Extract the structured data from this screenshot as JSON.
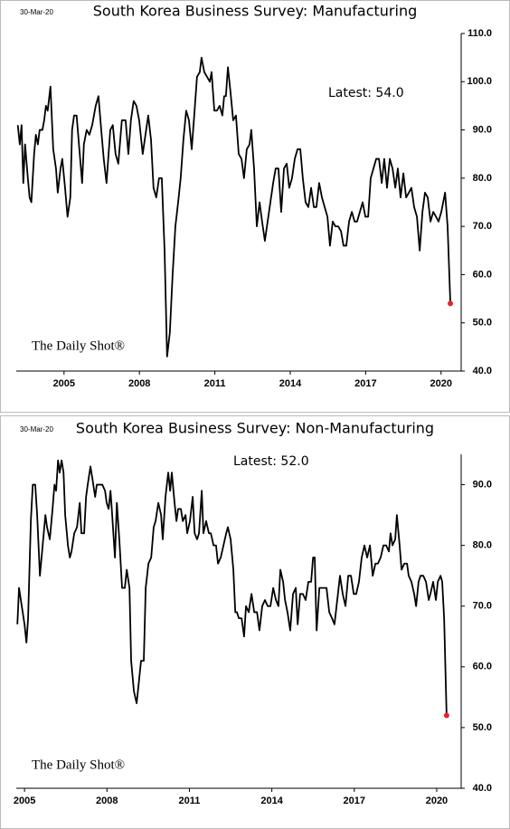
{
  "chart_data": [
    {
      "type": "line",
      "title": "South Korea Business Survey: Manufacturing",
      "date_label": "30-Mar-20",
      "annotation": "Latest:  54.0",
      "watermark": "The Daily Shot®",
      "color": "#000000",
      "last_point_color": "#e8222b",
      "xlim": [
        2003.1,
        2020.8
      ],
      "xticks": [
        2005,
        2008,
        2011,
        2014,
        2017,
        2020
      ],
      "ylim": [
        40,
        110
      ],
      "yticks": [
        {
          "value": 40,
          "label": "40.0"
        },
        {
          "value": 50,
          "label": "50.0"
        },
        {
          "value": 60,
          "label": "60.0"
        },
        {
          "value": 70,
          "label": "70.0"
        },
        {
          "value": 80,
          "label": "80.0"
        },
        {
          "value": 90,
          "label": "90.0"
        },
        {
          "value": 100,
          "label": "100.0"
        },
        {
          "value": 110,
          "label": "110.0"
        }
      ],
      "x": [
        2003.16,
        2003.24,
        2003.31,
        2003.38,
        2003.45,
        2003.56,
        2003.63,
        2003.7,
        2003.81,
        2003.88,
        2003.96,
        2004.03,
        2004.14,
        2004.21,
        2004.28,
        2004.35,
        2004.46,
        2004.57,
        2004.68,
        2004.75,
        2004.86,
        2004.93,
        2005.04,
        2005.14,
        2005.25,
        2005.32,
        2005.4,
        2005.5,
        2005.61,
        2005.72,
        2005.79,
        2005.9,
        2006.01,
        2006.12,
        2006.26,
        2006.37,
        2006.48,
        2006.58,
        2006.69,
        2006.84,
        2006.94,
        2007.05,
        2007.16,
        2007.3,
        2007.45,
        2007.56,
        2007.66,
        2007.77,
        2007.88,
        2007.99,
        2008.13,
        2008.24,
        2008.35,
        2008.46,
        2008.56,
        2008.67,
        2008.78,
        2008.89,
        2009.0,
        2009.1,
        2009.21,
        2009.32,
        2009.43,
        2009.54,
        2009.64,
        2009.75,
        2009.86,
        2009.97,
        2010.08,
        2010.18,
        2010.29,
        2010.4,
        2010.47,
        2010.58,
        2010.69,
        2010.8,
        2010.87,
        2010.98,
        2011.08,
        2011.19,
        2011.3,
        2011.37,
        2011.44,
        2011.52,
        2011.62,
        2011.73,
        2011.84,
        2011.95,
        2012.06,
        2012.16,
        2012.27,
        2012.38,
        2012.45,
        2012.56,
        2012.67,
        2012.78,
        2012.88,
        2012.99,
        2013.1,
        2013.21,
        2013.32,
        2013.42,
        2013.53,
        2013.64,
        2013.75,
        2013.86,
        2013.96,
        2014.07,
        2014.18,
        2014.29,
        2014.4,
        2014.5,
        2014.61,
        2014.72,
        2014.83,
        2014.94,
        2015.04,
        2015.15,
        2015.26,
        2015.37,
        2015.48,
        2015.58,
        2015.69,
        2015.8,
        2015.91,
        2016.02,
        2016.12,
        2016.23,
        2016.34,
        2016.45,
        2016.56,
        2016.66,
        2016.77,
        2016.88,
        2016.99,
        2017.1,
        2017.2,
        2017.31,
        2017.42,
        2017.53,
        2017.64,
        2017.74,
        2017.85,
        2017.96,
        2018.07,
        2018.18,
        2018.28,
        2018.39,
        2018.5,
        2018.61,
        2018.72,
        2018.82,
        2018.93,
        2019.04,
        2019.15,
        2019.26,
        2019.36,
        2019.47,
        2019.58,
        2019.69,
        2019.8,
        2019.9,
        2020.01,
        2020.16,
        2020.26,
        2020.37
      ],
      "values": [
        91,
        87,
        91,
        79,
        87,
        80,
        76,
        75,
        85,
        89,
        87,
        90,
        90,
        92,
        95,
        94,
        99,
        86,
        82,
        77,
        82,
        84,
        78,
        72,
        76,
        90,
        93,
        93,
        86,
        79,
        87,
        90,
        89,
        91,
        95,
        97,
        90,
        84,
        79,
        90,
        91,
        85,
        83,
        92,
        92,
        85,
        92,
        96,
        95,
        92,
        85,
        89,
        93,
        88,
        78,
        76,
        80,
        80,
        65,
        43,
        48,
        60,
        70,
        75,
        80,
        88,
        94,
        92,
        86,
        93,
        101,
        102,
        105,
        102,
        101,
        100,
        102,
        94,
        94,
        95,
        93,
        97,
        97,
        103,
        98,
        92,
        93,
        85,
        84,
        80,
        86,
        87,
        90,
        82,
        70,
        75,
        71,
        67,
        71,
        75,
        79,
        82,
        82,
        73,
        82,
        83,
        78,
        80,
        84,
        86,
        86,
        80,
        75,
        74,
        78,
        74,
        74,
        79,
        76,
        74,
        72,
        66,
        71,
        70,
        70,
        69,
        66,
        66,
        71,
        73,
        71,
        71,
        73,
        75,
        72,
        72,
        80,
        82,
        84,
        84,
        79,
        84,
        78,
        84,
        82,
        78,
        82,
        76,
        81,
        76,
        77,
        78,
        74,
        72,
        65,
        73,
        77,
        76,
        71,
        73,
        72,
        71,
        73,
        77,
        70,
        54
      ]
    },
    {
      "type": "line",
      "title": "South Korea Business Survey: Non-Manufacturing",
      "date_label": "30-Mar-20",
      "annotation": "Latest:  52.0",
      "watermark": "The Daily Shot®",
      "color": "#000000",
      "last_point_color": "#e8222b",
      "xlim": [
        2004.7,
        2020.89
      ],
      "xticks": [
        2005,
        2008,
        2011,
        2014,
        2017,
        2020
      ],
      "ylim": [
        40,
        95
      ],
      "yticks": [
        {
          "value": 40,
          "label": "40.0"
        },
        {
          "value": 50,
          "label": "50.0"
        },
        {
          "value": 60,
          "label": "60.0"
        },
        {
          "value": 70,
          "label": "70.0"
        },
        {
          "value": 80,
          "label": "80.0"
        },
        {
          "value": 90,
          "label": "90.0"
        }
      ],
      "x": [
        2004.74,
        2004.8,
        2004.9,
        2005.0,
        2005.07,
        2005.13,
        2005.23,
        2005.3,
        2005.39,
        2005.46,
        2005.56,
        2005.66,
        2005.76,
        2005.82,
        2005.92,
        2006.02,
        2006.09,
        2006.15,
        2006.22,
        2006.28,
        2006.35,
        2006.42,
        2006.48,
        2006.58,
        2006.65,
        2006.71,
        2006.81,
        2006.91,
        2007.01,
        2007.07,
        2007.17,
        2007.24,
        2007.3,
        2007.4,
        2007.47,
        2007.57,
        2007.63,
        2007.73,
        2007.83,
        2007.93,
        2007.99,
        2008.06,
        2008.13,
        2008.19,
        2008.29,
        2008.36,
        2008.45,
        2008.55,
        2008.65,
        2008.72,
        2008.82,
        2008.88,
        2008.98,
        2009.08,
        2009.15,
        2009.24,
        2009.34,
        2009.41,
        2009.51,
        2009.61,
        2009.7,
        2009.77,
        2009.87,
        2009.97,
        2010.03,
        2010.13,
        2010.23,
        2010.3,
        2010.36,
        2010.46,
        2010.53,
        2010.59,
        2010.69,
        2010.76,
        2010.86,
        2010.92,
        2011.02,
        2011.12,
        2011.19,
        2011.28,
        2011.35,
        2011.45,
        2011.51,
        2011.61,
        2011.71,
        2011.78,
        2011.88,
        2011.97,
        2012.04,
        2012.14,
        2012.24,
        2012.34,
        2012.4,
        2012.5,
        2012.6,
        2012.67,
        2012.73,
        2012.8,
        2012.9,
        2012.99,
        2013.06,
        2013.16,
        2013.26,
        2013.36,
        2013.46,
        2013.55,
        2013.65,
        2013.75,
        2013.85,
        2013.95,
        2014.05,
        2014.15,
        2014.24,
        2014.31,
        2014.41,
        2014.48,
        2014.57,
        2014.67,
        2014.77,
        2014.87,
        2014.94,
        2015.03,
        2015.13,
        2015.23,
        2015.33,
        2015.43,
        2015.5,
        2015.56,
        2015.63,
        2015.73,
        2015.82,
        2015.89,
        2015.99,
        2016.09,
        2016.19,
        2016.28,
        2016.38,
        2016.48,
        2016.58,
        2016.68,
        2016.78,
        2016.88,
        2016.98,
        2017.07,
        2017.17,
        2017.27,
        2017.37,
        2017.47,
        2017.57,
        2017.67,
        2017.77,
        2017.86,
        2017.96,
        2018.06,
        2018.16,
        2018.26,
        2018.32,
        2018.39,
        2018.49,
        2018.55,
        2018.65,
        2018.72,
        2018.82,
        2018.92,
        2018.98,
        2019.08,
        2019.18,
        2019.25,
        2019.34,
        2019.41,
        2019.51,
        2019.61,
        2019.71,
        2019.77,
        2019.87,
        2019.97,
        2020.04,
        2020.14,
        2020.2,
        2020.27,
        2020.36
      ],
      "values": [
        67,
        73,
        70,
        67,
        64,
        68,
        84,
        90,
        90,
        85,
        75,
        80,
        85,
        83,
        81,
        86,
        90,
        89,
        94,
        92,
        94,
        92,
        85,
        80,
        78,
        79,
        82,
        83,
        87,
        82,
        82,
        88,
        90,
        93,
        91,
        88,
        90,
        90,
        90,
        89,
        87,
        86,
        89,
        85,
        78,
        87,
        81,
        73,
        73,
        76,
        73,
        61,
        56,
        54,
        57,
        61,
        61,
        73,
        77,
        78,
        83,
        84,
        87,
        85,
        81,
        88,
        92,
        89,
        92,
        87,
        84,
        86,
        86,
        84,
        85,
        82,
        84,
        88,
        82,
        81,
        82,
        89,
        82,
        84,
        82,
        82,
        80,
        80,
        77,
        78,
        80,
        82,
        83,
        81,
        76,
        69,
        69,
        68,
        68,
        65,
        70,
        69,
        72,
        69,
        69,
        66,
        70,
        71,
        70,
        70,
        73,
        71,
        70,
        76,
        74,
        71,
        69,
        66,
        72,
        73,
        67,
        72,
        72,
        71,
        74,
        74,
        78,
        78,
        66,
        73,
        73,
        73,
        73,
        69,
        68,
        67,
        71,
        75,
        72,
        70,
        75,
        75,
        72,
        72,
        74,
        78,
        80,
        78,
        80,
        75,
        77,
        77,
        78,
        80,
        80,
        79,
        82,
        80,
        81,
        85,
        80,
        76,
        77,
        77,
        75,
        74,
        72,
        70,
        74,
        75,
        75,
        74,
        71,
        72,
        74,
        71,
        74,
        75,
        74,
        68,
        52
      ]
    }
  ]
}
